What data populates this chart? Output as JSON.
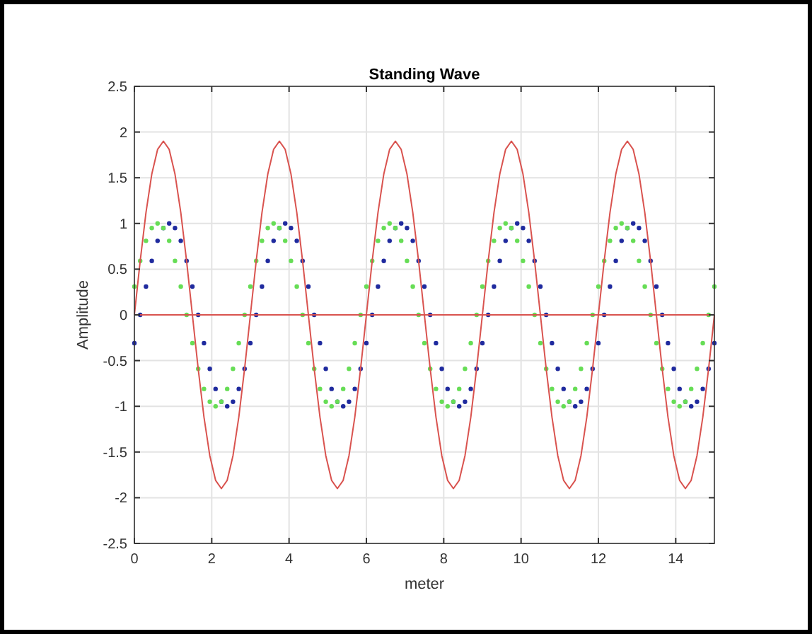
{
  "chart_data": {
    "type": "line",
    "title": "Standing Wave",
    "xlabel": "meter",
    "ylabel": "Amplitude",
    "x": [
      0,
      0.15,
      0.3,
      0.45,
      0.6,
      0.75,
      0.9,
      1.05,
      1.2,
      1.35,
      1.5,
      1.65,
      1.8,
      1.95,
      2.1,
      2.25,
      2.4,
      2.55,
      2.7,
      2.85,
      3,
      3.15,
      3.3,
      3.45,
      3.6,
      3.75,
      3.9,
      4.05,
      4.2,
      4.35,
      4.5,
      4.65,
      4.8,
      4.95,
      5.1,
      5.25,
      5.4,
      5.55,
      5.7,
      5.85,
      6,
      6.15,
      6.3,
      6.45,
      6.6,
      6.75,
      6.9,
      7.05,
      7.2,
      7.35,
      7.5,
      7.65,
      7.8,
      7.95,
      8.1,
      8.25,
      8.4,
      8.55,
      8.7,
      8.85,
      9,
      9.15,
      9.3,
      9.45,
      9.6,
      9.75,
      9.9,
      10.05,
      10.2,
      10.35,
      10.5,
      10.65,
      10.8,
      10.95,
      11.1,
      11.25,
      11.4,
      11.55,
      11.7,
      11.85,
      12,
      12.15,
      12.3,
      12.45,
      12.6,
      12.75,
      12.9,
      13.05,
      13.2,
      13.35,
      13.5,
      13.65,
      13.8,
      13.95,
      14.1,
      14.25,
      14.4,
      14.55,
      14.7,
      14.85,
      15
    ],
    "series": [
      {
        "type": "scatter",
        "marker": "circle",
        "color": "#1f2a9e",
        "values": [
          -0.31,
          0,
          0.31,
          0.59,
          0.81,
          0.95,
          1,
          0.95,
          0.81,
          0.59,
          0.31,
          0,
          -0.31,
          -0.59,
          -0.81,
          -0.95,
          -1,
          -0.95,
          -0.81,
          -0.59,
          -0.31,
          0,
          0.31,
          0.59,
          0.81,
          0.95,
          1,
          0.95,
          0.81,
          0.59,
          0.31,
          0,
          -0.31,
          -0.59,
          -0.81,
          -0.95,
          -1,
          -0.95,
          -0.81,
          -0.59,
          -0.31,
          0,
          0.31,
          0.59,
          0.81,
          0.95,
          1,
          0.95,
          0.81,
          0.59,
          0.31,
          0,
          -0.31,
          -0.59,
          -0.81,
          -0.95,
          -1,
          -0.95,
          -0.81,
          -0.59,
          -0.31,
          0,
          0.31,
          0.59,
          0.81,
          0.95,
          1,
          0.95,
          0.81,
          0.59,
          0.31,
          0,
          -0.31,
          -0.59,
          -0.81,
          -0.95,
          -1,
          -0.95,
          -0.81,
          -0.59,
          -0.31,
          0,
          0.31,
          0.59,
          0.81,
          0.95,
          1,
          0.95,
          0.81,
          0.59,
          0.31,
          0,
          -0.31,
          -0.59,
          -0.81,
          -0.95,
          -1,
          -0.95,
          -0.81,
          -0.59,
          -0.31
        ]
      },
      {
        "type": "scatter",
        "marker": "circle",
        "color": "#66dd55",
        "values": [
          0.31,
          0.59,
          0.81,
          0.95,
          1,
          0.95,
          0.81,
          0.59,
          0.31,
          0,
          -0.31,
          -0.59,
          -0.81,
          -0.95,
          -1,
          -0.95,
          -0.81,
          -0.59,
          -0.31,
          0,
          0.31,
          0.59,
          0.81,
          0.95,
          1,
          0.95,
          0.81,
          0.59,
          0.31,
          0,
          -0.31,
          -0.59,
          -0.81,
          -0.95,
          -1,
          -0.95,
          -0.81,
          -0.59,
          -0.31,
          0,
          0.31,
          0.59,
          0.81,
          0.95,
          1,
          0.95,
          0.81,
          0.59,
          0.31,
          0,
          -0.31,
          -0.59,
          -0.81,
          -0.95,
          -1,
          -0.95,
          -0.81,
          -0.59,
          -0.31,
          0,
          0.31,
          0.59,
          0.81,
          0.95,
          1,
          0.95,
          0.81,
          0.59,
          0.31,
          0,
          -0.31,
          -0.59,
          -0.81,
          -0.95,
          -1,
          -0.95,
          -0.81,
          -0.59,
          -0.31,
          0,
          0.31,
          0.59,
          0.81,
          0.95,
          1,
          0.95,
          0.81,
          0.59,
          0.31,
          0,
          -0.31,
          -0.59,
          -0.81,
          -0.95,
          -1,
          -0.95,
          -0.81,
          -0.59,
          -0.31,
          0,
          0.31
        ]
      },
      {
        "color": "#d9534f",
        "values": [
          0,
          0.59,
          1.12,
          1.54,
          1.81,
          1.9,
          1.81,
          1.54,
          1.12,
          0.59,
          0,
          -0.59,
          -1.12,
          -1.54,
          -1.81,
          -1.9,
          -1.81,
          -1.54,
          -1.12,
          -0.59,
          0,
          0.59,
          1.12,
          1.54,
          1.81,
          1.9,
          1.81,
          1.54,
          1.12,
          0.59,
          0,
          -0.59,
          -1.12,
          -1.54,
          -1.81,
          -1.9,
          -1.81,
          -1.54,
          -1.12,
          -0.59,
          0,
          0.59,
          1.12,
          1.54,
          1.81,
          1.9,
          1.81,
          1.54,
          1.12,
          0.59,
          0,
          -0.59,
          -1.12,
          -1.54,
          -1.81,
          -1.9,
          -1.81,
          -1.54,
          -1.12,
          -0.59,
          0,
          0.59,
          1.12,
          1.54,
          1.81,
          1.9,
          1.81,
          1.54,
          1.12,
          0.59,
          0,
          -0.59,
          -1.12,
          -1.54,
          -1.81,
          -1.9,
          -1.81,
          -1.54,
          -1.12,
          -0.59,
          0,
          0.59,
          1.12,
          1.54,
          1.81,
          1.9,
          1.81,
          1.54,
          1.12,
          0.59,
          0,
          -0.59,
          -1.12,
          -1.54,
          -1.81,
          -1.9,
          -1.81,
          -1.54,
          -1.12,
          -0.59,
          0
        ]
      },
      {
        "color": "#d9534f",
        "x": [
          0,
          15
        ],
        "values": [
          0,
          0
        ]
      }
    ],
    "xlim": [
      0,
      15
    ],
    "xticks": [
      0,
      2,
      4,
      6,
      8,
      10,
      12,
      14
    ],
    "ylim": [
      -2.5,
      2.5
    ],
    "yticks": [
      -2.5,
      -2,
      -1.5,
      -1,
      -0.5,
      0,
      0.5,
      1,
      1.5,
      2,
      2.5
    ],
    "grid": true,
    "line_style": "solid"
  }
}
